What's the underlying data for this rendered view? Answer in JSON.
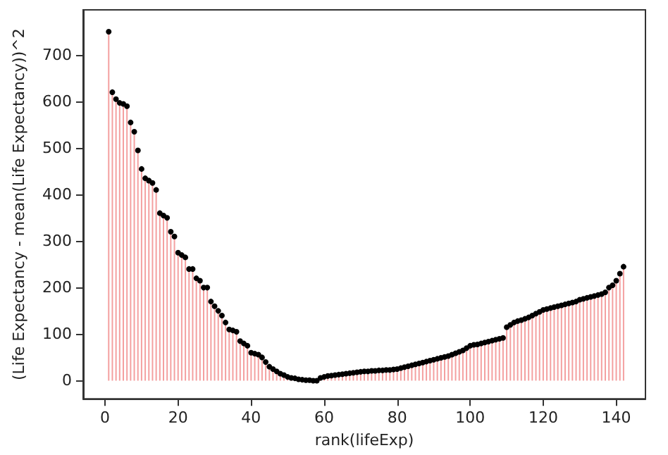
{
  "chart_data": {
    "type": "lollipop",
    "xlabel": "rank(lifeExp)",
    "ylabel": "(Life Expectancy - mean(Life Expectancy))^2",
    "x": [
      1,
      2,
      3,
      4,
      5,
      6,
      7,
      8,
      9,
      10,
      11,
      12,
      13,
      14,
      15,
      16,
      17,
      18,
      19,
      20,
      21,
      22,
      23,
      24,
      25,
      26,
      27,
      28,
      29,
      30,
      31,
      32,
      33,
      34,
      35,
      36,
      37,
      38,
      39,
      40,
      41,
      42,
      43,
      44,
      45,
      46,
      47,
      48,
      49,
      50,
      51,
      52,
      53,
      54,
      55,
      56,
      57,
      58,
      59,
      60,
      61,
      62,
      63,
      64,
      65,
      66,
      67,
      68,
      69,
      70,
      71,
      72,
      73,
      74,
      75,
      76,
      77,
      78,
      79,
      80,
      81,
      82,
      83,
      84,
      85,
      86,
      87,
      88,
      89,
      90,
      91,
      92,
      93,
      94,
      95,
      96,
      97,
      98,
      99,
      100,
      101,
      102,
      103,
      104,
      105,
      106,
      107,
      108,
      109,
      110,
      111,
      112,
      113,
      114,
      115,
      116,
      117,
      118,
      119,
      120,
      121,
      122,
      123,
      124,
      125,
      126,
      127,
      128,
      129,
      130,
      131,
      132,
      133,
      134,
      135,
      136,
      137,
      138,
      139,
      140,
      141,
      142
    ],
    "series": [
      {
        "color": "#000000",
        "values": [
          750,
          620,
          605,
          597,
          595,
          590,
          555,
          535,
          495,
          455,
          435,
          430,
          425,
          410,
          360,
          355,
          350,
          320,
          310,
          275,
          270,
          265,
          240,
          240,
          220,
          215,
          200,
          200,
          170,
          160,
          150,
          140,
          125,
          110,
          108,
          105,
          85,
          80,
          75,
          60,
          58,
          56,
          50,
          40,
          30,
          25,
          20,
          15,
          12,
          8,
          6,
          5,
          3,
          2,
          1,
          1,
          0,
          0,
          6,
          8,
          10,
          11,
          12,
          13,
          14,
          15,
          16,
          17,
          18,
          19,
          20,
          20,
          21,
          21,
          22,
          22,
          23,
          23,
          24,
          25,
          27,
          29,
          31,
          33,
          35,
          37,
          39,
          41,
          43,
          45,
          47,
          49,
          51,
          53,
          56,
          59,
          62,
          65,
          70,
          75,
          77,
          78,
          80,
          82,
          84,
          86,
          88,
          90,
          92,
          115,
          120,
          125,
          128,
          130,
          133,
          136,
          140,
          144,
          148,
          152,
          154,
          156,
          158,
          160,
          162,
          164,
          166,
          168,
          170,
          174,
          176,
          178,
          180,
          182,
          184,
          186,
          190,
          200,
          205,
          215,
          230,
          245
        ]
      }
    ],
    "xlim": [
      -6,
      148
    ],
    "ylim": [
      -39,
      797
    ],
    "xticks": [
      0,
      20,
      40,
      60,
      80,
      100,
      120,
      140
    ],
    "yticks": [
      0,
      100,
      200,
      300,
      400,
      500,
      600,
      700
    ],
    "grid": false,
    "marker": "circle"
  }
}
